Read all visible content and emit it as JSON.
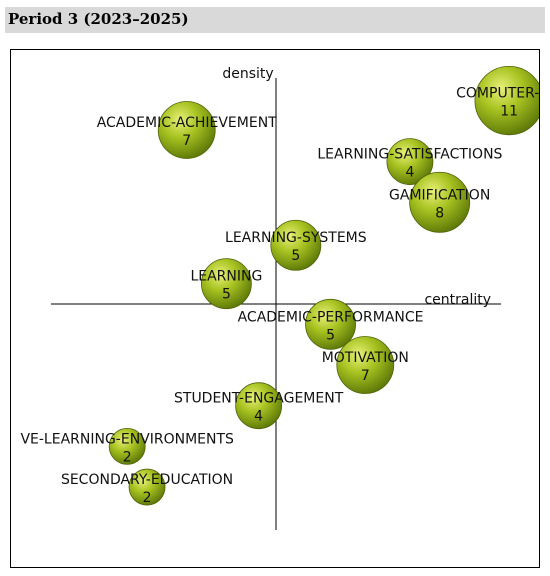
{
  "header": {
    "title": "Period 3 (2023–2025)"
  },
  "chart_data": {
    "type": "scatter",
    "subtype": "strategic-diagram",
    "x_axis_label": "centrality",
    "y_axis_label": "density",
    "bubble_color": "#9ab51c",
    "themes": [
      {
        "name": "COMPUTER-SCI",
        "count": 11,
        "centrality": 0.94,
        "density": 0.9
      },
      {
        "name": "ACADEMIC-ACHIEVEMENT",
        "count": 7,
        "centrality": -0.36,
        "density": 0.77
      },
      {
        "name": "LEARNING-SATISFACTIONS",
        "count": 4,
        "centrality": 0.54,
        "density": 0.63
      },
      {
        "name": "GAMIFICATION",
        "count": 8,
        "centrality": 0.66,
        "density": 0.45
      },
      {
        "name": "LEARNING-SYSTEMS",
        "count": 5,
        "centrality": 0.08,
        "density": 0.26
      },
      {
        "name": "LEARNING",
        "count": 5,
        "centrality": -0.2,
        "density": 0.09
      },
      {
        "name": "ACADEMIC-PERFORMANCE",
        "count": 5,
        "centrality": 0.22,
        "density": -0.09
      },
      {
        "name": "MOTIVATION",
        "count": 7,
        "centrality": 0.36,
        "density": -0.27
      },
      {
        "name": "STUDENT-ENGAGEMENT",
        "count": 4,
        "centrality": -0.07,
        "density": -0.45
      },
      {
        "name": "VE-LEARNING-ENVIRONMENTS",
        "count": 2,
        "centrality": -0.6,
        "density": -0.63
      },
      {
        "name": "SECONDARY-EDUCATION",
        "count": 2,
        "centrality": -0.52,
        "density": -0.81
      }
    ]
  }
}
